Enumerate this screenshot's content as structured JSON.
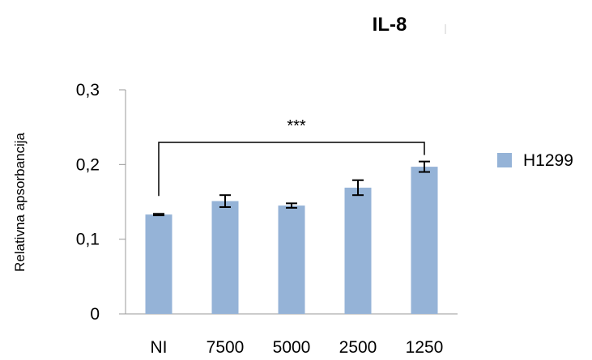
{
  "chart_data": {
    "type": "bar",
    "title": "IL-8",
    "ylabel": "Relativna apsorbancija",
    "xlabel": "",
    "categories": [
      "NI",
      "7500",
      "5000",
      "2500",
      "1250"
    ],
    "series": [
      {
        "name": "H1299",
        "color": "#95b3d7",
        "values": [
          0.133,
          0.151,
          0.145,
          0.169,
          0.197
        ],
        "errors": [
          0.001,
          0.008,
          0.003,
          0.01,
          0.007
        ]
      }
    ],
    "ylim": [
      0,
      0.3
    ],
    "yticks": [
      0,
      0.1,
      0.2,
      0.3
    ],
    "ytick_labels": [
      "0",
      "0,1",
      "0,2",
      "0,3"
    ],
    "grid": false,
    "legend_position": "right",
    "annotations": [
      {
        "text": "***",
        "from_category": "NI",
        "to_category": "1250"
      }
    ]
  }
}
